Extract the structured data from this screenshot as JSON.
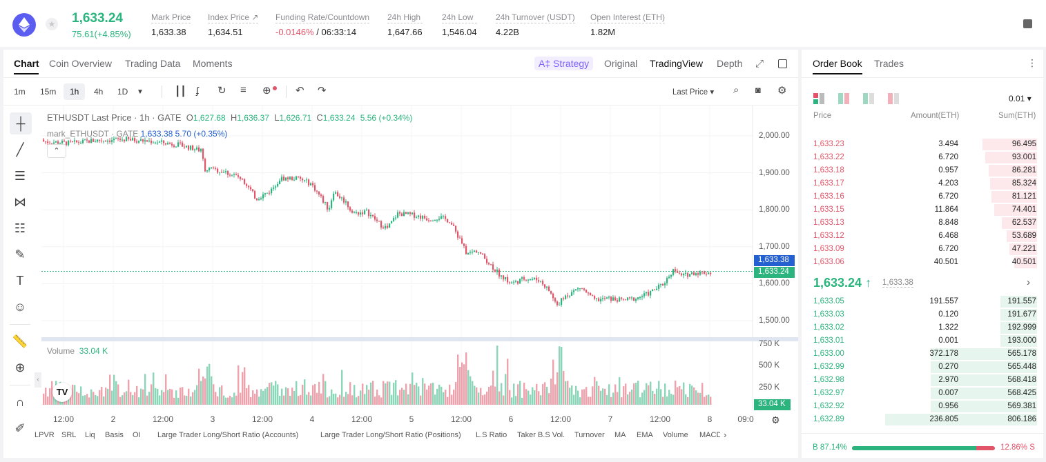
{
  "header": {
    "last_price": "1,633.24",
    "change": "75.61(+4.85%)",
    "stats": [
      {
        "label": "Mark Price",
        "value": "1,633.38",
        "value2": ""
      },
      {
        "label": "Index Price ↗",
        "value": "1,634.51",
        "value2": ""
      },
      {
        "label": "Funding Rate/Countdown",
        "value": "-0.0146%",
        "value2": " / 06:33:14"
      },
      {
        "label": "24h High",
        "value": "1,647.66",
        "value2": ""
      },
      {
        "label": "24h Low",
        "value": "1,546.04",
        "value2": ""
      },
      {
        "label": "24h Turnover (USDT)",
        "value": "4.22B",
        "value2": ""
      },
      {
        "label": "Open Interest (ETH)",
        "value": "1.82M",
        "value2": ""
      }
    ]
  },
  "chart_tabs": [
    "Chart",
    "Coin Overview",
    "Trading Data",
    "Moments"
  ],
  "view_tabs": {
    "strategy": "A‡ Strategy",
    "original": "Original",
    "tradingview": "TradingView",
    "depth": "Depth"
  },
  "intervals": [
    "1m",
    "15m",
    "1h",
    "4h",
    "1D"
  ],
  "price_type": "Last Price ▾",
  "legend": {
    "symbol": "ETHUSDT Last Price · 1h · GATE",
    "o_label": "O",
    "o": "1,627.68",
    "h_label": "H",
    "h": "1,636.37",
    "l_label": "L",
    "l": "1,626.71",
    "c_label": "C",
    "c": "1,633.24",
    "chg": "5.56 (+0.34%)",
    "mark_line": "mark_ETHUSDT · GATE",
    "mark_val": "1,633.38",
    "mark_chg": "5.70 (+0.35%)",
    "volume_label": "Volume",
    "volume_val": "33.04 K"
  },
  "price_axis": [
    "2,000.00",
    "1,900.00",
    "1,800.00",
    "1,700.00",
    "1,600.00",
    "1,500.00"
  ],
  "price_tags": {
    "mark": "1,633.38",
    "last": "1,633.24"
  },
  "volume_axis": [
    "750 K",
    "500 K",
    "250 K"
  ],
  "volume_tag": "33.04 K",
  "time_axis": [
    "12:00",
    "2",
    "12:00",
    "3",
    "12:00",
    "4",
    "12:00",
    "5",
    "12:00",
    "6",
    "12:00",
    "7",
    "12:00",
    "8",
    "09:0"
  ],
  "indicators": [
    "LPVR",
    "SRL",
    "Liq",
    "Basis",
    "OI",
    "Large Trader Long/Short Ratio (Accounts)",
    "Large Trader Long/Short Ratio (Positions)",
    "L.S Ratio",
    "Taker B.S Vol.",
    "Turnover",
    "MA",
    "EMA",
    "Volume",
    "MACD"
  ],
  "orderbook": {
    "tabs": [
      "Order Book",
      "Trades"
    ],
    "precision": "0.01 ▾",
    "headers": [
      "Price",
      "Amount(ETH)",
      "Sum(ETH)"
    ],
    "asks": [
      {
        "price": "1,633.23",
        "amount": "3.494",
        "sum": "96.495",
        "depth": 0.36
      },
      {
        "price": "1,633.22",
        "amount": "6.720",
        "sum": "93.001",
        "depth": 0.34
      },
      {
        "price": "1,633.18",
        "amount": "0.957",
        "sum": "86.281",
        "depth": 0.32
      },
      {
        "price": "1,633.17",
        "amount": "4.203",
        "sum": "85.324",
        "depth": 0.31
      },
      {
        "price": "1,633.16",
        "amount": "6.720",
        "sum": "81.121",
        "depth": 0.3
      },
      {
        "price": "1,633.15",
        "amount": "11.864",
        "sum": "74.401",
        "depth": 0.28
      },
      {
        "price": "1,633.13",
        "amount": "8.848",
        "sum": "62.537",
        "depth": 0.23
      },
      {
        "price": "1,633.12",
        "amount": "6.468",
        "sum": "53.689",
        "depth": 0.2
      },
      {
        "price": "1,633.09",
        "amount": "6.720",
        "sum": "47.221",
        "depth": 0.18
      },
      {
        "price": "1,633.06",
        "amount": "40.501",
        "sum": "40.501",
        "depth": 0.15
      }
    ],
    "mid_price": "1,633.24 ↑",
    "mid_mark": "1,633.38",
    "bids": [
      {
        "price": "1,633.05",
        "amount": "191.557",
        "sum": "191.557",
        "depth": 0.24
      },
      {
        "price": "1,633.03",
        "amount": "0.120",
        "sum": "191.677",
        "depth": 0.24
      },
      {
        "price": "1,633.02",
        "amount": "1.322",
        "sum": "192.999",
        "depth": 0.24
      },
      {
        "price": "1,633.01",
        "amount": "0.001",
        "sum": "193.000",
        "depth": 0.24
      },
      {
        "price": "1,633.00",
        "amount": "372.178",
        "sum": "565.178",
        "depth": 0.7
      },
      {
        "price": "1,632.99",
        "amount": "0.270",
        "sum": "565.448",
        "depth": 0.7
      },
      {
        "price": "1,632.98",
        "amount": "2.970",
        "sum": "568.418",
        "depth": 0.7
      },
      {
        "price": "1,632.97",
        "amount": "0.007",
        "sum": "568.425",
        "depth": 0.7
      },
      {
        "price": "1,632.92",
        "amount": "0.956",
        "sum": "569.381",
        "depth": 0.7
      },
      {
        "price": "1,632.89",
        "amount": "236.805",
        "sum": "806.186",
        "depth": 1.0
      }
    ],
    "buy_ratio": "B 87.14%",
    "sell_ratio": "12.86% S",
    "buy_fraction": 0.8714
  },
  "colors": {
    "up": "#2bb47e",
    "down": "#e25468",
    "accent": "#7b61ff"
  }
}
